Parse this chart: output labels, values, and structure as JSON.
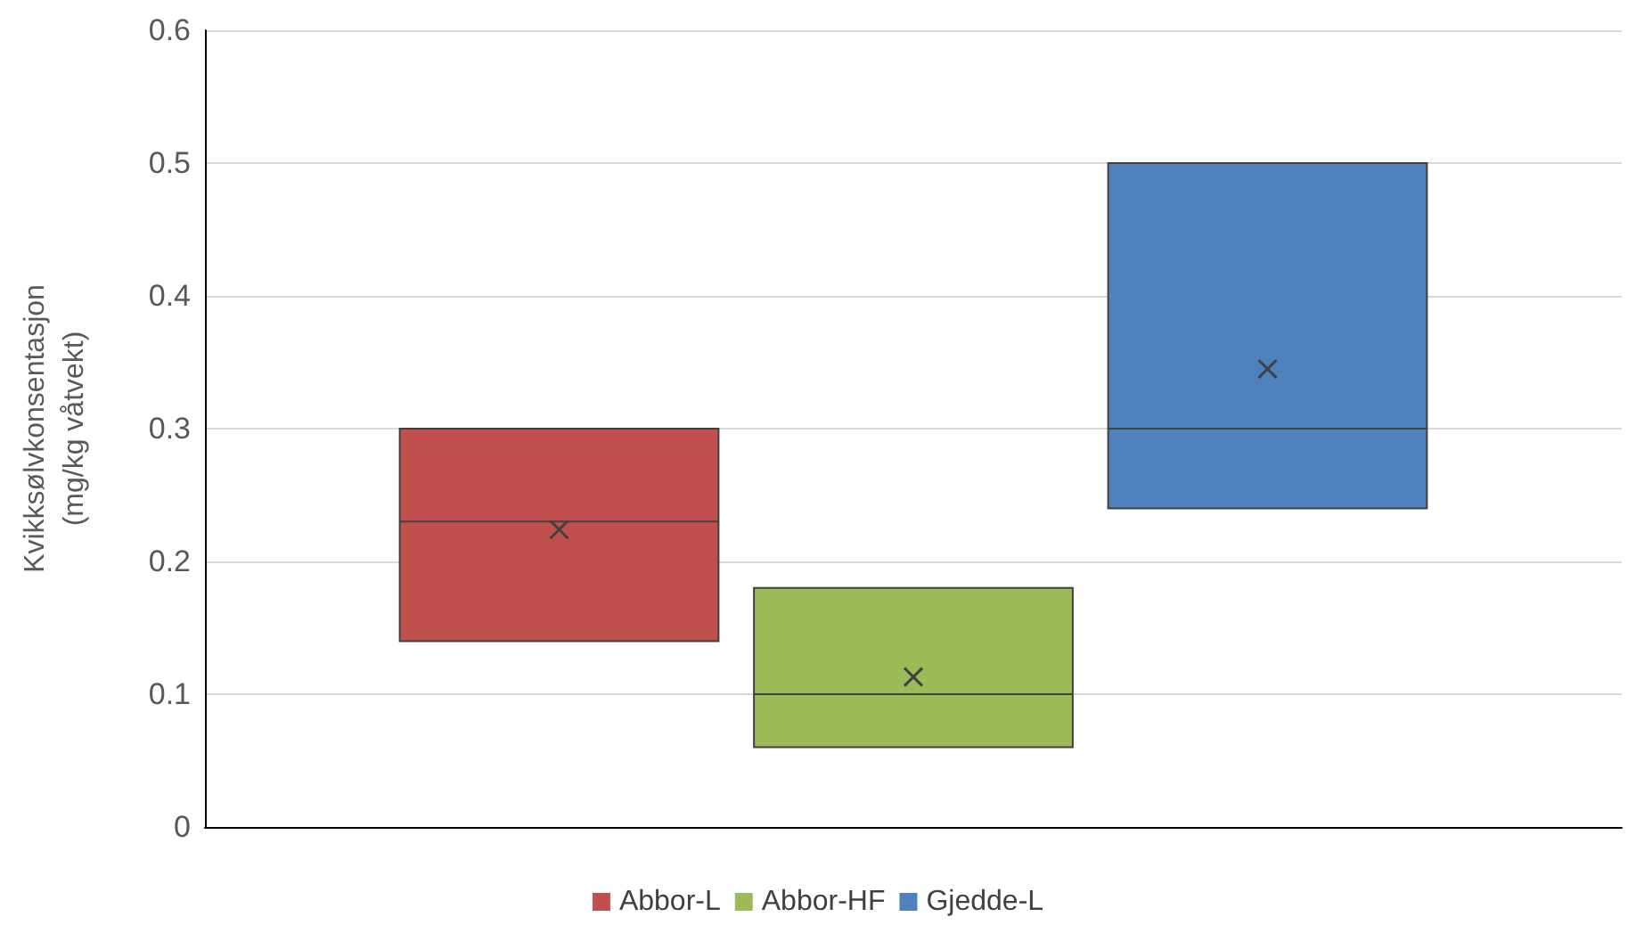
{
  "chart_data": {
    "type": "box",
    "ylabel": "Kvikksølvkonsentasjon\n(mg/kg våtvekt)",
    "categories": [
      null
    ],
    "ylim": [
      0,
      0.6
    ],
    "yticks": [
      0,
      0.1,
      0.2,
      0.3,
      0.4,
      0.5,
      0.6
    ],
    "grid": "y",
    "legend": "bottom",
    "series": [
      {
        "name": "Abbor-L",
        "color": "#c0504d",
        "boxes": [
          {
            "low": 0.14,
            "q1": 0.14,
            "median": 0.23,
            "q3": 0.3,
            "high": 0.3,
            "mean": 0.224
          }
        ]
      },
      {
        "name": "Abbor-HF",
        "color": "#9bbb59",
        "boxes": [
          {
            "low": 0.06,
            "q1": 0.06,
            "median": 0.1,
            "q3": 0.18,
            "high": 0.18,
            "mean": 0.113
          }
        ]
      },
      {
        "name": "Gjedde-L",
        "color": "#4f81bd",
        "boxes": [
          {
            "low": 0.24,
            "q1": 0.24,
            "median": 0.3,
            "q3": 0.5,
            "high": 0.5,
            "mean": 0.345
          }
        ]
      }
    ]
  }
}
